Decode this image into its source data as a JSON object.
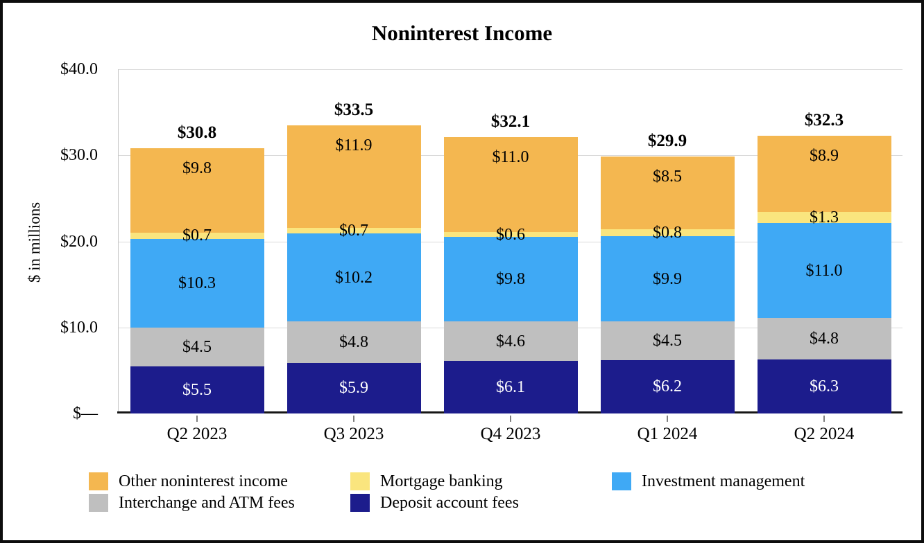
{
  "title": "Noninterest Income",
  "chart_data": {
    "type": "bar",
    "stacked": true,
    "title": "Noninterest Income",
    "xlabel": "",
    "ylabel": "$ in millions",
    "ylim": [
      0,
      40
    ],
    "grid": true,
    "legend_position": "bottom",
    "units": "$ in millions",
    "categories": [
      "Q2 2023",
      "Q3 2023",
      "Q4 2023",
      "Q1 2024",
      "Q2 2024"
    ],
    "series": [
      {
        "key": "deposit",
        "name": "Deposit account fees",
        "color": "#1c1c8c",
        "label_color": "#ffffff",
        "label_placement": "center",
        "values": [
          5.5,
          5.9,
          6.1,
          6.2,
          6.3
        ]
      },
      {
        "key": "interchange",
        "name": "Interchange and ATM fees",
        "color": "#bfbfbf",
        "label_color": "#000000",
        "label_placement": "center",
        "values": [
          4.5,
          4.8,
          4.6,
          4.5,
          4.8
        ]
      },
      {
        "key": "investment",
        "name": "Investment management",
        "color": "#3fa9f5",
        "label_color": "#000000",
        "label_placement": "center",
        "values": [
          10.3,
          10.2,
          9.8,
          9.9,
          11.0
        ]
      },
      {
        "key": "mortgage",
        "name": "Mortgage banking",
        "color": "#fae57e",
        "label_color": "#000000",
        "label_placement": "center",
        "values": [
          0.7,
          0.7,
          0.6,
          0.8,
          1.3
        ]
      },
      {
        "key": "other",
        "name": "Other noninterest income",
        "color": "#f4b750",
        "label_color": "#000000",
        "label_placement": "top",
        "values": [
          9.8,
          11.9,
          11.0,
          8.5,
          8.9
        ]
      }
    ],
    "totals": [
      30.8,
      33.5,
      32.1,
      29.9,
      32.3
    ],
    "total_labels": [
      "$30.8",
      "$33.5",
      "$32.1",
      "$29.9",
      "$32.3"
    ],
    "segment_label_format": "$0.0",
    "y_ticks": [
      {
        "value": 40,
        "label": "$40.0"
      },
      {
        "value": 30,
        "label": "$30.0"
      },
      {
        "value": 20,
        "label": "$20.0"
      },
      {
        "value": 10,
        "label": "$10.0"
      },
      {
        "value": 0,
        "label": "$—"
      }
    ],
    "gridline_color": "#d9d9d9",
    "axis_line_color": "#c6c6c6",
    "baseline_color": "#161616",
    "tick_color": "#7f7f7f"
  },
  "legend": {
    "columns": [
      {
        "items": [
          {
            "series": "other",
            "label": "Other noninterest income"
          },
          {
            "series": "interchange",
            "label": "Interchange and ATM fees"
          }
        ]
      },
      {
        "items": [
          {
            "series": "mortgage",
            "label": "Mortgage banking"
          },
          {
            "series": "deposit",
            "label": "Deposit account fees"
          }
        ]
      },
      {
        "items": [
          {
            "series": "investment",
            "label": "Investment management"
          }
        ]
      }
    ]
  }
}
